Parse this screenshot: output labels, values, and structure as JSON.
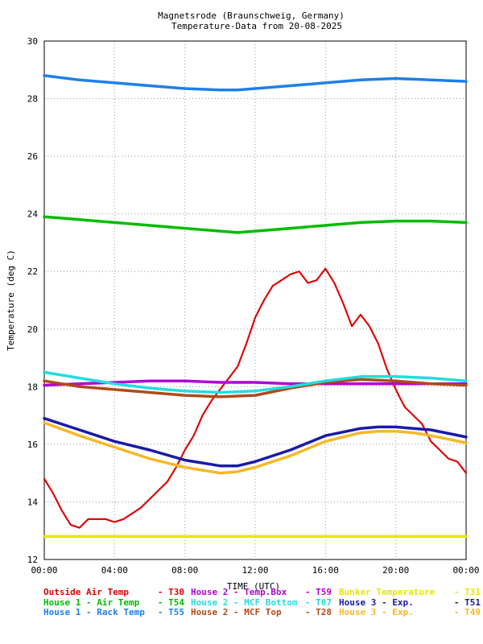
{
  "chart_data": {
    "type": "line",
    "title": "Magnetsrode (Braunschweig, Germany)",
    "subtitle": "Temperature-Data from 20-08-2025",
    "xlabel": "TIME (UTC)",
    "ylabel": "Temperature (deg C)",
    "xlim": [
      0,
      24
    ],
    "ylim": [
      12,
      30
    ],
    "x_tick_labels": [
      "00:00",
      "04:00",
      "08:00",
      "12:00",
      "16:00",
      "20:00",
      "00:00"
    ],
    "y_tick_labels": [
      "12",
      "14",
      "16",
      "18",
      "20",
      "22",
      "24",
      "26",
      "28",
      "30"
    ],
    "grid": true,
    "legend_position": "bottom",
    "series": [
      {
        "name": "Outside Air Temp",
        "tag": "T30",
        "color": "#dd0000",
        "x": [
          0,
          0.5,
          1,
          1.5,
          2,
          2.5,
          3,
          3.5,
          4,
          4.5,
          5,
          5.5,
          6,
          6.5,
          7,
          7.5,
          8,
          8.5,
          9,
          9.5,
          10,
          10.5,
          11,
          11.5,
          12,
          12.5,
          13,
          13.5,
          14,
          14.5,
          15,
          15.5,
          16,
          16.5,
          17,
          17.5,
          18,
          18.5,
          19,
          19.5,
          20,
          20.5,
          21,
          21.5,
          22,
          22.5,
          23,
          23.5,
          24
        ],
        "y": [
          14.8,
          14.3,
          13.7,
          13.2,
          13.1,
          13.4,
          13.4,
          13.4,
          13.3,
          13.4,
          13.6,
          13.8,
          14.1,
          14.4,
          14.7,
          15.2,
          15.8,
          16.3,
          17.0,
          17.5,
          17.9,
          18.3,
          18.7,
          19.5,
          20.4,
          21.0,
          21.5,
          21.7,
          21.9,
          22.0,
          21.6,
          21.7,
          22.1,
          21.6,
          20.9,
          20.1,
          20.5,
          20.1,
          19.5,
          18.6,
          17.9,
          17.3,
          17.0,
          16.7,
          16.1,
          15.8,
          15.5,
          15.4,
          15.0
        ]
      },
      {
        "name": "House 1 - Air  Temp",
        "tag": "T54",
        "color": "#00bb00",
        "x": [
          0,
          2,
          4,
          6,
          8,
          10,
          11,
          12,
          14,
          16,
          18,
          20,
          22,
          24
        ],
        "y": [
          23.9,
          23.8,
          23.7,
          23.6,
          23.5,
          23.4,
          23.35,
          23.4,
          23.5,
          23.6,
          23.7,
          23.75,
          23.75,
          23.7
        ]
      },
      {
        "name": "House 1 - Rack Temp",
        "tag": "T55",
        "color": "#1e7fe8",
        "x": [
          0,
          2,
          4,
          6,
          8,
          10,
          11,
          12,
          14,
          16,
          18,
          20,
          22,
          24
        ],
        "y": [
          28.8,
          28.65,
          28.55,
          28.45,
          28.35,
          28.3,
          28.3,
          28.35,
          28.45,
          28.55,
          28.65,
          28.7,
          28.65,
          28.6
        ]
      },
      {
        "name": "House 2 - Temp.Box",
        "tag": "T59",
        "color": "#b000d8",
        "x": [
          0,
          2,
          4,
          6,
          8,
          10,
          12,
          14,
          16,
          18,
          20,
          22,
          24
        ],
        "y": [
          18.05,
          18.1,
          18.15,
          18.2,
          18.2,
          18.15,
          18.15,
          18.1,
          18.1,
          18.1,
          18.1,
          18.1,
          18.1
        ]
      },
      {
        "name": "House 2 - MCF Bottom",
        "tag": "T07",
        "color": "#22dddd",
        "x": [
          0,
          2,
          4,
          6,
          8,
          10,
          12,
          14,
          16,
          18,
          20,
          22,
          24
        ],
        "y": [
          18.5,
          18.3,
          18.1,
          17.95,
          17.85,
          17.8,
          17.85,
          18.0,
          18.2,
          18.35,
          18.35,
          18.3,
          18.2
        ]
      },
      {
        "name": "House 2 - MCF Top",
        "tag": "T28",
        "color": "#b04a1a",
        "x": [
          0,
          2,
          4,
          6,
          8,
          10,
          12,
          14,
          16,
          18,
          20,
          22,
          24
        ],
        "y": [
          18.2,
          18.0,
          17.9,
          17.8,
          17.7,
          17.65,
          17.7,
          17.95,
          18.15,
          18.25,
          18.2,
          18.1,
          18.05
        ]
      },
      {
        "name": "Bunker Temperature",
        "tag": "T31",
        "color": "#e6e600",
        "x": [
          0,
          24
        ],
        "y": [
          12.8,
          12.8
        ]
      },
      {
        "name": "House 3 - Exp.",
        "tag": "T51",
        "color": "#1a1aa8",
        "x": [
          0,
          2,
          4,
          6,
          8,
          9,
          10,
          11,
          12,
          14,
          16,
          18,
          19,
          20,
          21,
          22,
          24
        ],
        "y": [
          16.9,
          16.5,
          16.1,
          15.8,
          15.45,
          15.35,
          15.25,
          15.25,
          15.4,
          15.8,
          16.3,
          16.55,
          16.6,
          16.6,
          16.55,
          16.5,
          16.25
        ]
      },
      {
        "name": "House 3 - Exp.",
        "tag": "T49",
        "color": "#f5b828",
        "x": [
          0,
          2,
          4,
          6,
          8,
          9,
          10,
          11,
          12,
          14,
          16,
          18,
          19,
          20,
          21,
          22,
          24
        ],
        "y": [
          16.75,
          16.3,
          15.9,
          15.5,
          15.2,
          15.1,
          15.0,
          15.05,
          15.2,
          15.6,
          16.1,
          16.4,
          16.45,
          16.45,
          16.4,
          16.3,
          16.05
        ]
      }
    ]
  }
}
